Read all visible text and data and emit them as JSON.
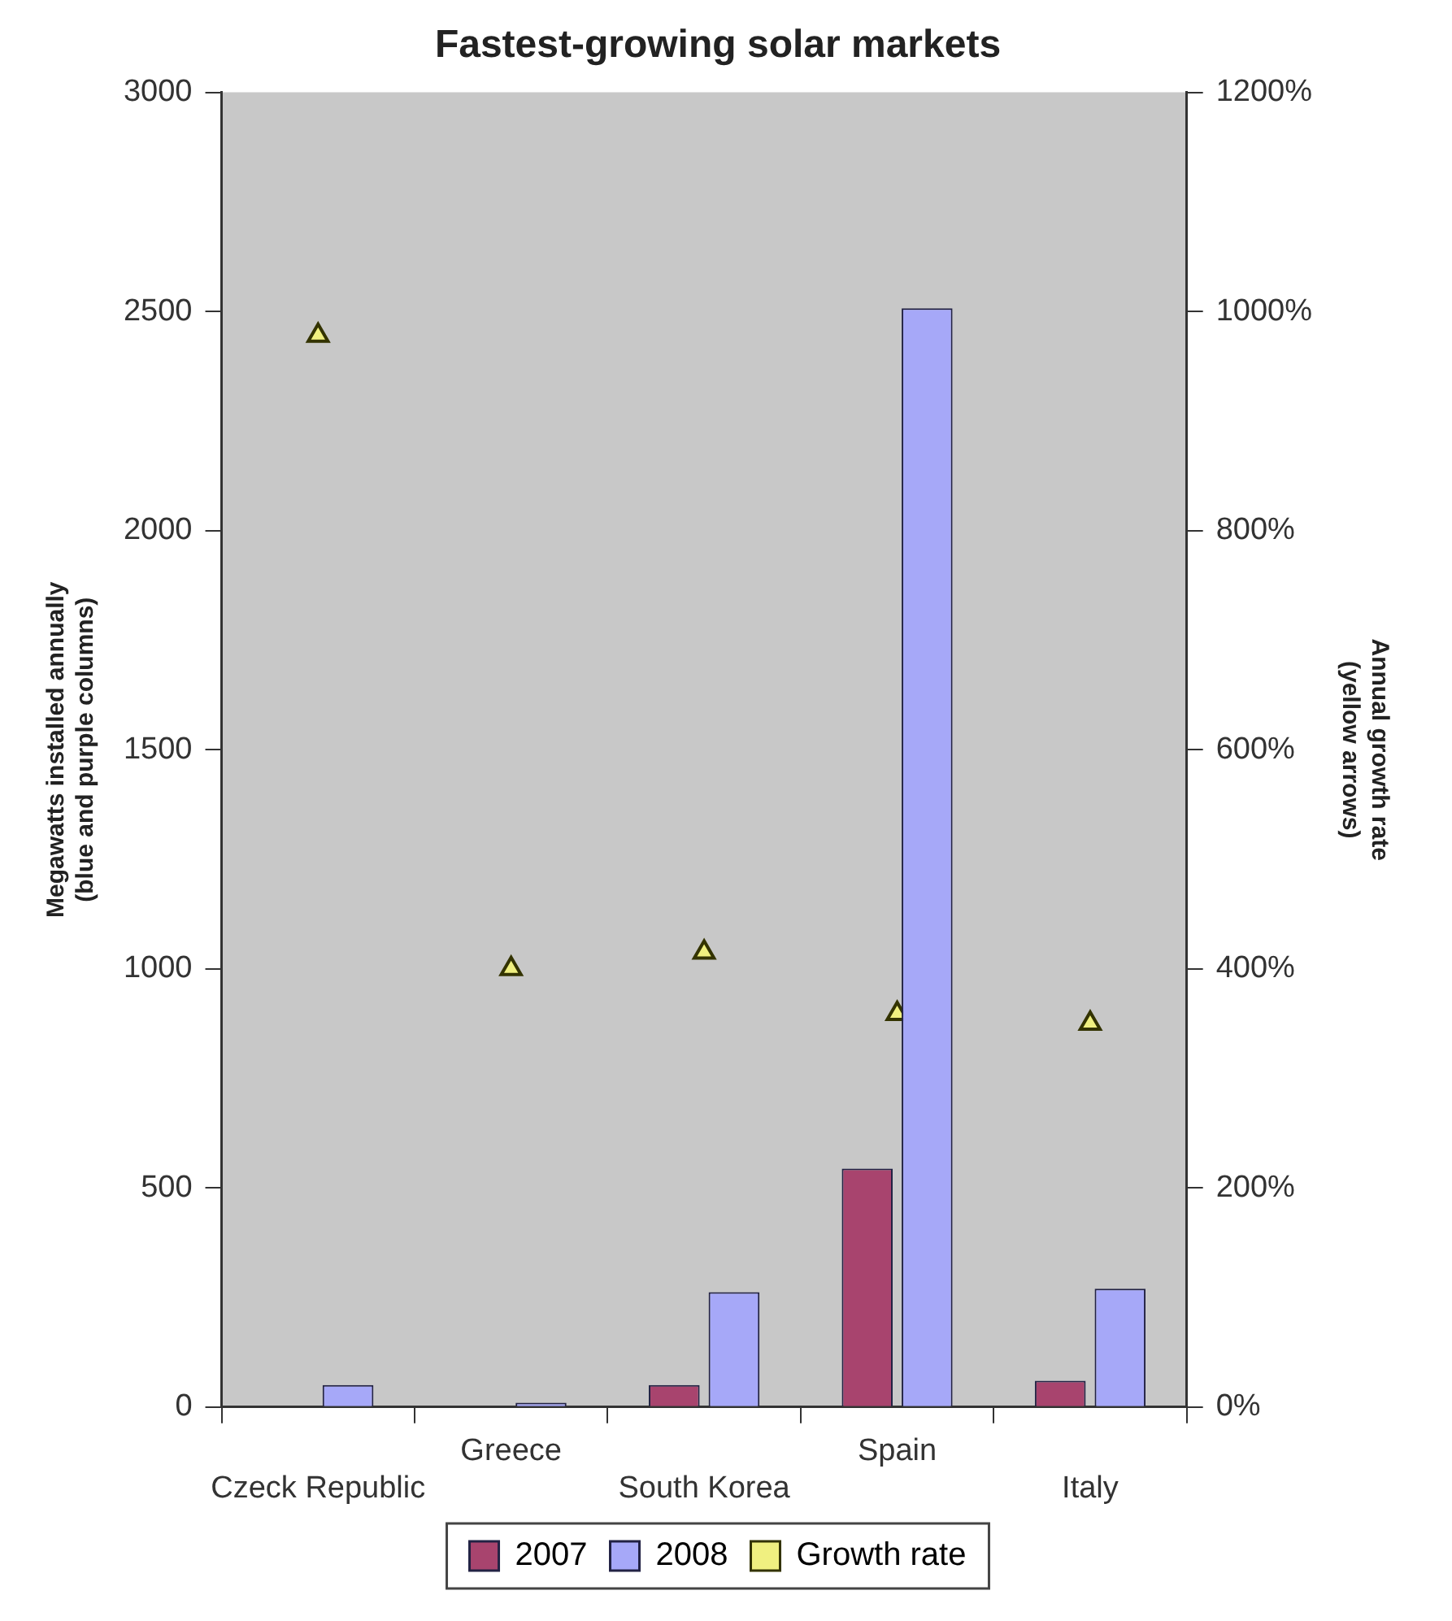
{
  "chart_data": {
    "type": "bar",
    "title": "Fastest-growing solar markets",
    "categories": [
      "Czeck Republic",
      "Greece",
      "South Korea",
      "Spain",
      "Italy"
    ],
    "series": [
      {
        "name": "2007",
        "color": "#a8446e",
        "values": [
          null,
          null,
          50,
          544,
          60
        ]
      },
      {
        "name": "2008",
        "color": "#a6a8f8",
        "values": [
          50,
          10,
          262,
          2507,
          270
        ]
      },
      {
        "name": "Growth rate",
        "type": "scatter",
        "axis": "y2",
        "color": "#f0f080",
        "marker": "triangle",
        "values": [
          978,
          400,
          415,
          359,
          350
        ]
      }
    ],
    "ylabel": "Megawatts installed annually\n(blue and purple columns)",
    "y2label": "Annual growth rate\n(yellow arrows)",
    "ylim": [
      0,
      3000
    ],
    "yticks": [
      0,
      500,
      1000,
      1500,
      2000,
      2500,
      3000
    ],
    "y2lim": [
      0,
      1200
    ],
    "y2ticks": [
      {
        "value": 0,
        "label": "0%"
      },
      {
        "value": 200,
        "label": "200%"
      },
      {
        "value": 400,
        "label": "400%"
      },
      {
        "value": 600,
        "label": "600%"
      },
      {
        "value": 800,
        "label": "800%"
      },
      {
        "value": 1000,
        "label": "1000%"
      },
      {
        "value": 1200,
        "label": "1200%"
      }
    ],
    "grid": false,
    "legend": "bottom"
  }
}
